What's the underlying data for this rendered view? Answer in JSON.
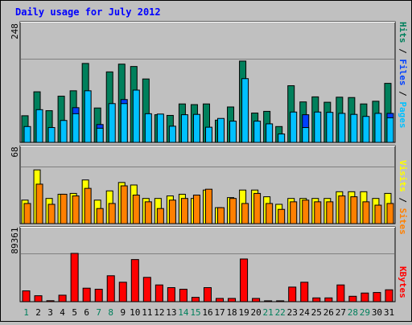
{
  "chart_data": [
    {
      "type": "bar",
      "title": "Daily usage for July 2012",
      "ytick_label": "248",
      "ylim": [
        0,
        248
      ],
      "legend": [
        "Pages",
        "Files",
        "Hits"
      ],
      "legend_separators": [
        "/",
        "/"
      ],
      "categories": [
        "1",
        "2",
        "3",
        "4",
        "5",
        "6",
        "7",
        "8",
        "9",
        "10",
        "11",
        "12",
        "13",
        "14",
        "15",
        "16",
        "17",
        "18",
        "19",
        "20",
        "21",
        "22",
        "23",
        "24",
        "25",
        "26",
        "27",
        "28",
        "29",
        "30",
        "31"
      ],
      "series": [
        {
          "name": "Hits",
          "color": "#00805c",
          "values": [
            79,
            150,
            94,
            137,
            153,
            234,
            102,
            209,
            232,
            225,
            188,
            82,
            80,
            114,
            112,
            114,
            66,
            105,
            241,
            87,
            92,
            47,
            168,
            120,
            135,
            119,
            134,
            133,
            114,
            122,
            175
          ]
        },
        {
          "name": "Files",
          "color": "#0040ff",
          "values": [
            0,
            0,
            0,
            0,
            103,
            0,
            53,
            0,
            127,
            0,
            0,
            0,
            0,
            0,
            0,
            0,
            0,
            0,
            0,
            0,
            0,
            0,
            0,
            82,
            0,
            0,
            0,
            0,
            0,
            0,
            86
          ]
        },
        {
          "name": "Pages",
          "color": "#00c0ff",
          "values": [
            47,
            97,
            44,
            65,
            85,
            153,
            42,
            115,
            115,
            155,
            85,
            84,
            48,
            82,
            83,
            45,
            71,
            63,
            189,
            63,
            55,
            25,
            90,
            44,
            90,
            89,
            86,
            83,
            77,
            86,
            73
          ]
        }
      ]
    },
    {
      "type": "bar",
      "ytick_label": "68",
      "ylim": [
        0,
        68
      ],
      "legend": [
        "Sites",
        "Visits"
      ],
      "legend_separators": [
        "/"
      ],
      "categories": [
        "1",
        "2",
        "3",
        "4",
        "5",
        "6",
        "7",
        "8",
        "9",
        "10",
        "11",
        "12",
        "13",
        "14",
        "15",
        "16",
        "17",
        "18",
        "19",
        "20",
        "21",
        "22",
        "23",
        "24",
        "25",
        "26",
        "27",
        "28",
        "29",
        "30",
        "31"
      ],
      "series": [
        {
          "name": "Visits",
          "color": "#ffff00",
          "values": [
            28,
            64,
            30,
            35,
            36,
            52,
            28,
            39,
            49,
            46,
            30,
            30,
            33,
            35,
            30,
            40,
            19,
            31,
            40,
            40,
            32,
            23,
            30,
            30,
            30,
            30,
            38,
            38,
            38,
            30,
            36
          ]
        },
        {
          "name": "Sites",
          "color": "#ff8000",
          "values": [
            24,
            47,
            23,
            35,
            33,
            42,
            18,
            24,
            45,
            34,
            26,
            18,
            28,
            30,
            34,
            41,
            19,
            30,
            24,
            36,
            24,
            17,
            26,
            28,
            26,
            26,
            33,
            32,
            26,
            22,
            24
          ]
        }
      ]
    },
    {
      "type": "bar",
      "ytick_label": "89361",
      "ylim": [
        0,
        89361
      ],
      "legend": [
        "KBytes"
      ],
      "categories": [
        "1",
        "2",
        "3",
        "4",
        "5",
        "6",
        "7",
        "8",
        "9",
        "10",
        "11",
        "12",
        "13",
        "14",
        "15",
        "16",
        "17",
        "18",
        "19",
        "20",
        "21",
        "22",
        "23",
        "24",
        "25",
        "26",
        "27",
        "28",
        "29",
        "30",
        "31"
      ],
      "series": [
        {
          "name": "KBytes",
          "color": "#ff0000",
          "values": [
            20000,
            11000,
            1800,
            12000,
            89361,
            25000,
            23000,
            48000,
            36000,
            78000,
            45000,
            31000,
            26000,
            23000,
            8000,
            26000,
            6000,
            6000,
            79000,
            6000,
            1600,
            1600,
            27000,
            36000,
            7000,
            7000,
            31000,
            10000,
            16000,
            17000,
            22000
          ]
        }
      ]
    }
  ],
  "x_labels": {
    "days": [
      "1",
      "2",
      "3",
      "4",
      "5",
      "6",
      "7",
      "8",
      "9",
      "10",
      "11",
      "12",
      "13",
      "14",
      "15",
      "16",
      "17",
      "18",
      "19",
      "20",
      "21",
      "22",
      "23",
      "24",
      "25",
      "26",
      "27",
      "28",
      "29",
      "30",
      "31"
    ],
    "weekend_days": [
      1,
      7,
      8,
      14,
      15,
      21,
      22,
      28,
      29
    ],
    "weekday_color": "#000000",
    "weekend_color": "#00805c"
  },
  "colors": {
    "title": "#0000ff",
    "plot_bg": "#c0c0c0",
    "grid": "#808080"
  }
}
